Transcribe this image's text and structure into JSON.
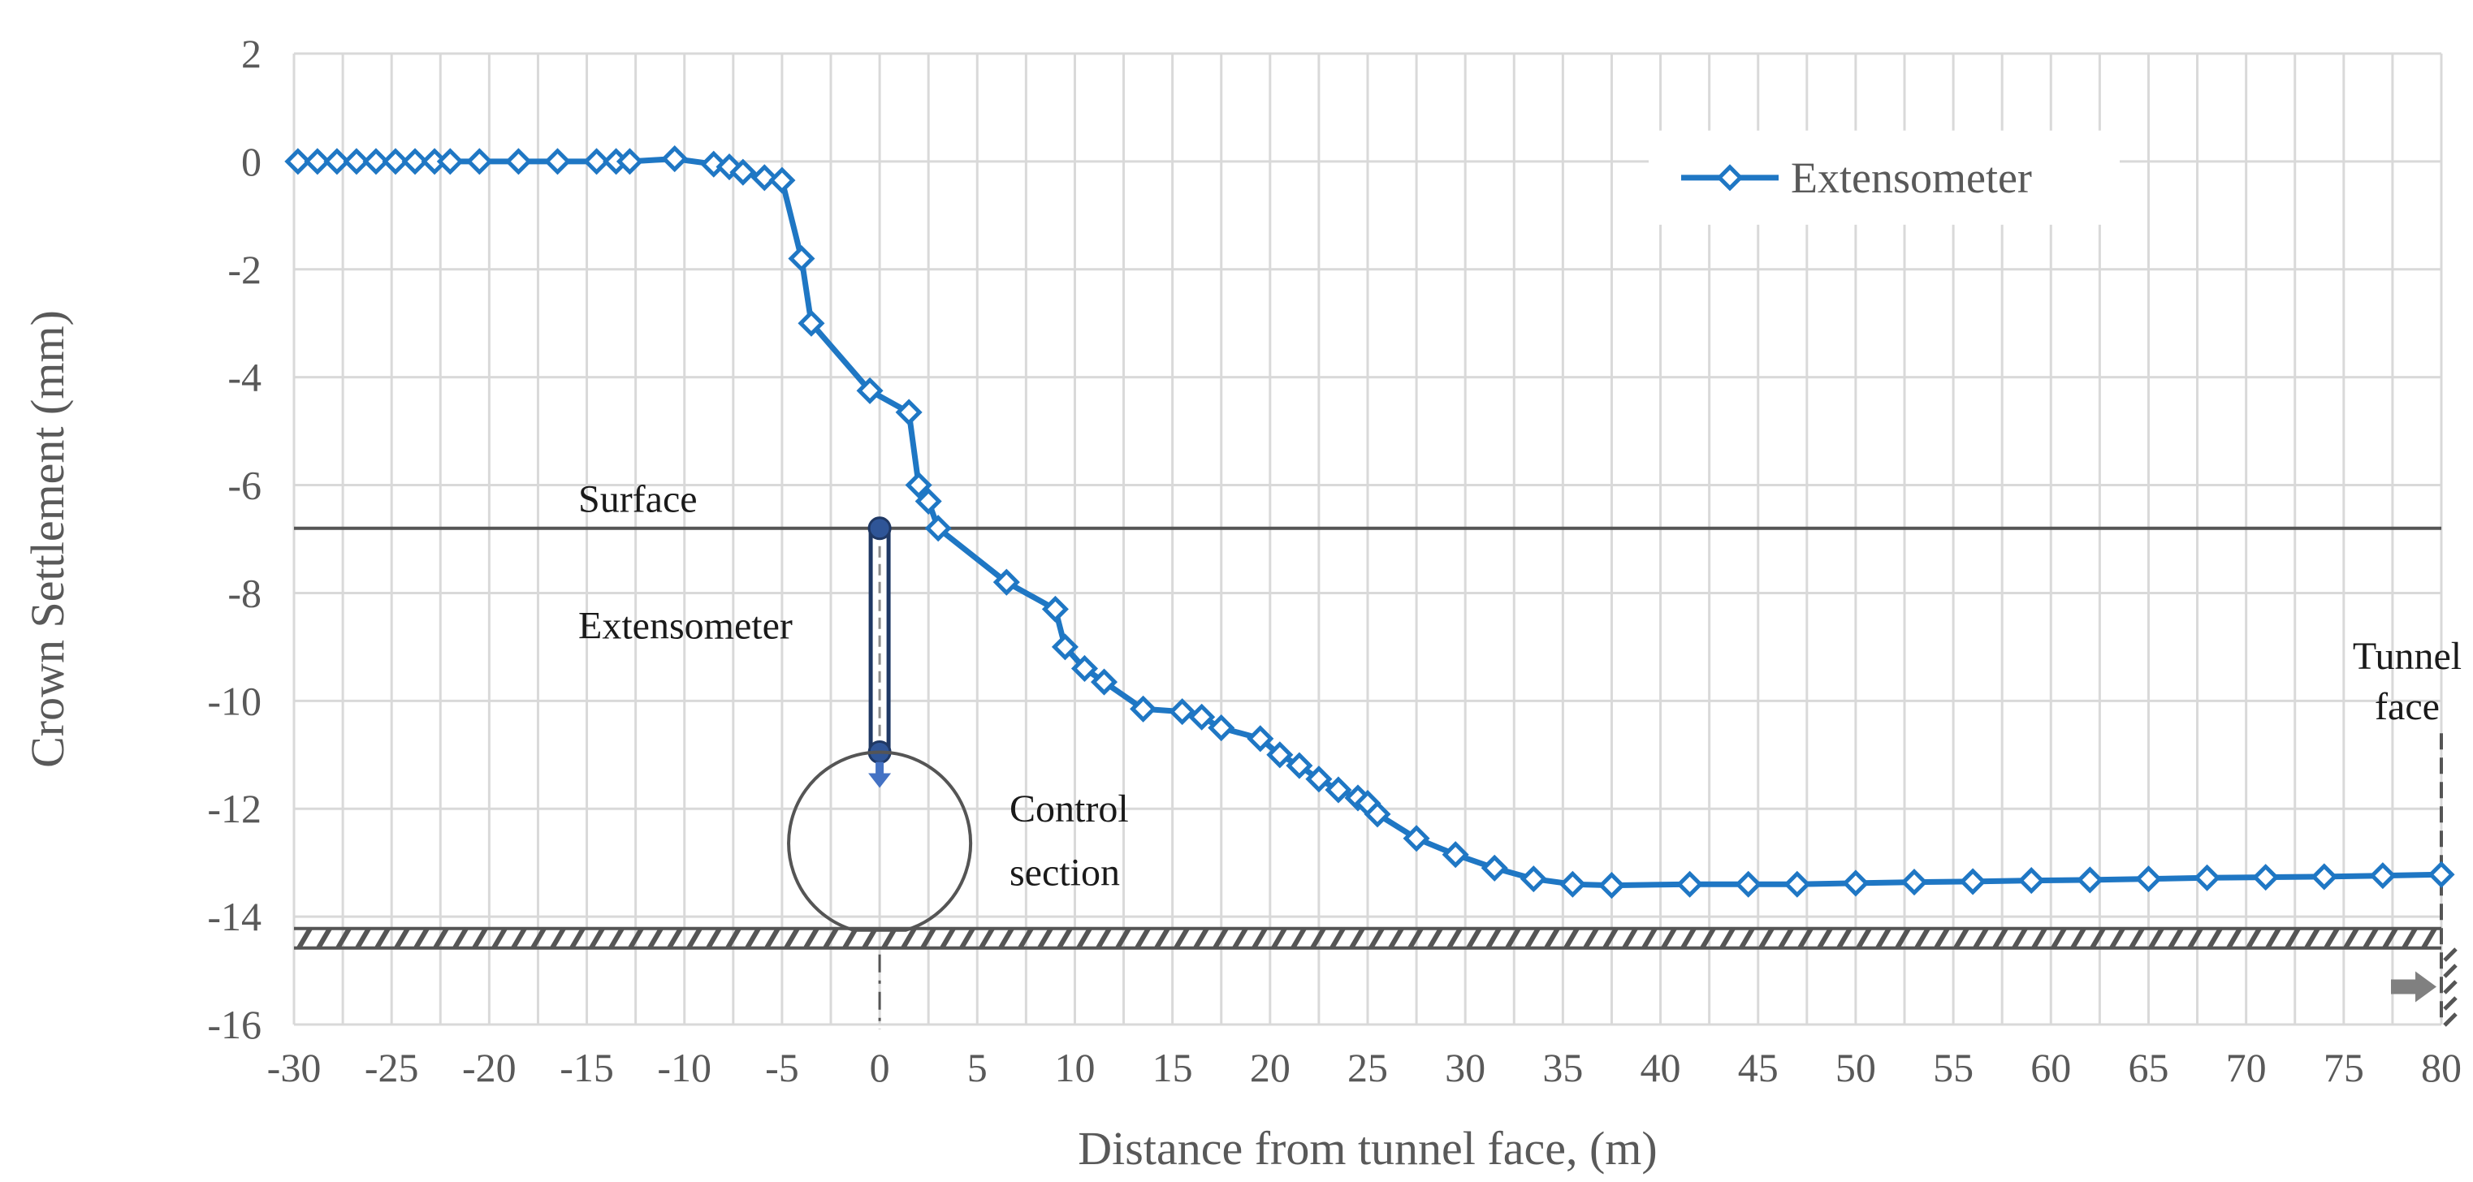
{
  "chart_data": {
    "type": "line",
    "title": "",
    "xlabel": "Distance from tunnel face, (m)",
    "ylabel": "Crown Settlement (mm)",
    "xlim": [
      -30,
      80
    ],
    "ylim": [
      -16,
      2
    ],
    "x_ticks": [
      -30,
      -25,
      -20,
      -15,
      -10,
      -5,
      0,
      5,
      10,
      15,
      20,
      25,
      30,
      35,
      40,
      45,
      50,
      55,
      60,
      65,
      70,
      75,
      80
    ],
    "y_ticks": [
      2,
      0,
      -2,
      -4,
      -6,
      -8,
      -10,
      -12,
      -14,
      -16
    ],
    "grid": "on",
    "legend_position": "top-right",
    "colors": {
      "series": "#1f77c4",
      "grid": "#d9d9d9",
      "annotation": "#555555"
    },
    "series": [
      {
        "name": "Extensometer",
        "marker": "diamond",
        "points": [
          [
            -29.8,
            0
          ],
          [
            -28.8,
            0
          ],
          [
            -27.8,
            0
          ],
          [
            -26.8,
            0
          ],
          [
            -25.8,
            0
          ],
          [
            -24.8,
            0
          ],
          [
            -23.8,
            0
          ],
          [
            -22.8,
            0
          ],
          [
            -22.0,
            0
          ],
          [
            -20.5,
            0
          ],
          [
            -18.5,
            0
          ],
          [
            -16.5,
            0
          ],
          [
            -14.5,
            0
          ],
          [
            -13.5,
            0
          ],
          [
            -12.8,
            0
          ],
          [
            -10.5,
            0.05
          ],
          [
            -8.5,
            -0.05
          ],
          [
            -7.7,
            -0.1
          ],
          [
            -7.0,
            -0.2
          ],
          [
            -5.9,
            -0.3
          ],
          [
            -5.0,
            -0.35
          ],
          [
            -4.0,
            -1.8
          ],
          [
            -3.5,
            -3.0
          ],
          [
            -0.5,
            -4.25
          ],
          [
            1.5,
            -4.65
          ],
          [
            2.0,
            -6.0
          ],
          [
            2.5,
            -6.3
          ],
          [
            3.0,
            -6.8
          ],
          [
            6.5,
            -7.8
          ],
          [
            9.0,
            -8.3
          ],
          [
            9.5,
            -9.0
          ],
          [
            10.5,
            -9.4
          ],
          [
            11.5,
            -9.65
          ],
          [
            13.5,
            -10.15
          ],
          [
            15.5,
            -10.2
          ],
          [
            16.5,
            -10.3
          ],
          [
            17.5,
            -10.5
          ],
          [
            19.5,
            -10.7
          ],
          [
            20.5,
            -11.0
          ],
          [
            21.5,
            -11.2
          ],
          [
            22.5,
            -11.45
          ],
          [
            23.5,
            -11.65
          ],
          [
            24.5,
            -11.8
          ],
          [
            25.0,
            -11.9
          ],
          [
            25.5,
            -12.1
          ],
          [
            27.5,
            -12.55
          ],
          [
            29.5,
            -12.85
          ],
          [
            31.5,
            -13.1
          ],
          [
            33.5,
            -13.3
          ],
          [
            35.5,
            -13.4
          ],
          [
            37.5,
            -13.42
          ],
          [
            41.5,
            -13.4
          ],
          [
            44.5,
            -13.4
          ],
          [
            47.0,
            -13.4
          ],
          [
            50.0,
            -13.38
          ],
          [
            53.0,
            -13.36
          ],
          [
            56.0,
            -13.35
          ],
          [
            59.0,
            -13.33
          ],
          [
            62.0,
            -13.32
          ],
          [
            65.0,
            -13.3
          ],
          [
            68.0,
            -13.28
          ],
          [
            71.0,
            -13.27
          ],
          [
            74.0,
            -13.26
          ],
          [
            77.0,
            -13.24
          ],
          [
            80.0,
            -13.22
          ]
        ]
      }
    ],
    "annotations": {
      "surface_label": "Surface",
      "extensometer_label": "Extensometer",
      "control_section_line1": "Control",
      "control_section_line2": "section",
      "tunnel_face_line1": "Tunnel",
      "tunnel_face_line2": "face",
      "surface_level": -6.8,
      "ground_level": -14.4
    }
  }
}
